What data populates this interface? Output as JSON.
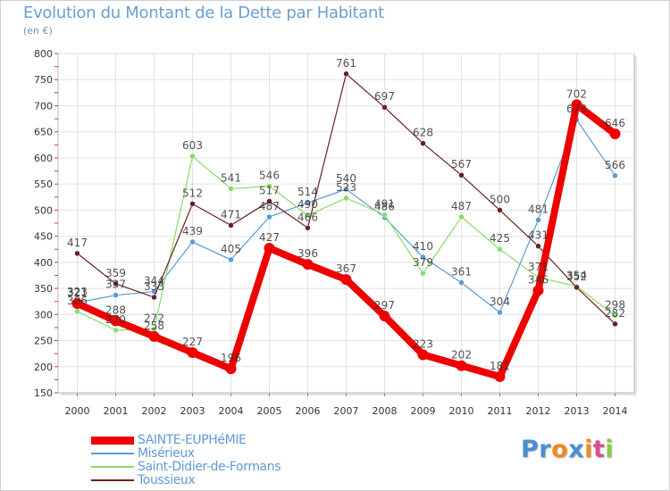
{
  "chart_data": {
    "type": "line",
    "title": "Evolution du Montant de la Dette par Habitant",
    "subtitle": "(en €)",
    "x": [
      "2000",
      "2001",
      "2002",
      "2003",
      "2004",
      "2005",
      "2006",
      "2007",
      "2008",
      "2009",
      "2010",
      "2011",
      "2012",
      "2013",
      "2014"
    ],
    "ylim": [
      150,
      800
    ],
    "yticks": [
      150,
      200,
      250,
      300,
      350,
      400,
      450,
      500,
      550,
      600,
      650,
      700,
      750,
      800
    ],
    "grid": true,
    "legend_position": "bottom-left",
    "series": [
      {
        "name": "SAINTE-EUPHéMIE",
        "color": "#ee0000",
        "values": [
          321,
          288,
          258,
          227,
          196,
          427,
          396,
          367,
          297,
          223,
          202,
          181,
          346,
          702,
          646
        ]
      },
      {
        "name": "Misérieux",
        "color": "#5a9bd4",
        "values": [
          323,
          337,
          344,
          439,
          405,
          487,
          514,
          540,
          486,
          410,
          361,
          304,
          481,
          673,
          566
        ]
      },
      {
        "name": "Saint-Didier-de-Formans",
        "color": "#88dd66",
        "values": [
          306,
          270,
          272,
          603,
          541,
          546,
          490,
          523,
          491,
          379,
          487,
          425,
          371,
          354,
          298
        ]
      },
      {
        "name": "Toussieux",
        "color": "#6b1f1f",
        "values": [
          417,
          359,
          333,
          512,
          471,
          517,
          466,
          761,
          697,
          628,
          567,
          500,
          431,
          352,
          282
        ]
      }
    ]
  },
  "brand": {
    "text": "Proxiti",
    "letter_colors": [
      "#4a8fd6",
      "#4a8fd6",
      "#f08a1c",
      "#4a8fd6",
      "#f08a1c",
      "#d94f8a",
      "#88cc44"
    ]
  }
}
